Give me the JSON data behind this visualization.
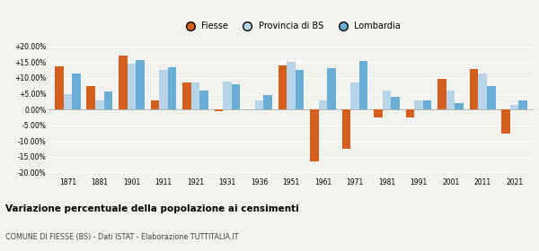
{
  "years": [
    1871,
    1881,
    1901,
    1911,
    1921,
    1931,
    1936,
    1951,
    1961,
    1971,
    1981,
    1991,
    2001,
    2011,
    2021
  ],
  "fiesse": [
    13.8,
    7.3,
    17.2,
    3.0,
    8.5,
    -0.5,
    0.1,
    14.0,
    -16.5,
    -12.5,
    -2.5,
    -2.5,
    9.8,
    12.8,
    -7.5
  ],
  "provincia": [
    5.0,
    3.0,
    14.5,
    12.5,
    8.5,
    9.0,
    3.0,
    15.0,
    3.0,
    8.5,
    6.0,
    3.0,
    6.0,
    11.5,
    1.5
  ],
  "lombardia": [
    11.5,
    5.8,
    15.8,
    13.5,
    6.0,
    8.0,
    4.5,
    12.5,
    13.0,
    15.5,
    4.0,
    3.0,
    2.0,
    7.5,
    3.0
  ],
  "fiesse_color": "#d45f1e",
  "provincia_color": "#b8d4e8",
  "lombardia_color": "#6aadd5",
  "title": "Variazione percentuale della popolazione ai censimenti",
  "subtitle": "COMUNE DI FIESSE (BS) - Dati ISTAT - Elaborazione TUTTITALIA.IT",
  "legend_labels": [
    "Fiesse",
    "Provincia di BS",
    "Lombardia"
  ],
  "ylim": [
    -21,
    22
  ],
  "yticks": [
    -20,
    -15,
    -10,
    -5,
    0,
    5,
    10,
    15,
    20
  ],
  "background_color": "#f2f2ee",
  "bar_width": 0.27
}
